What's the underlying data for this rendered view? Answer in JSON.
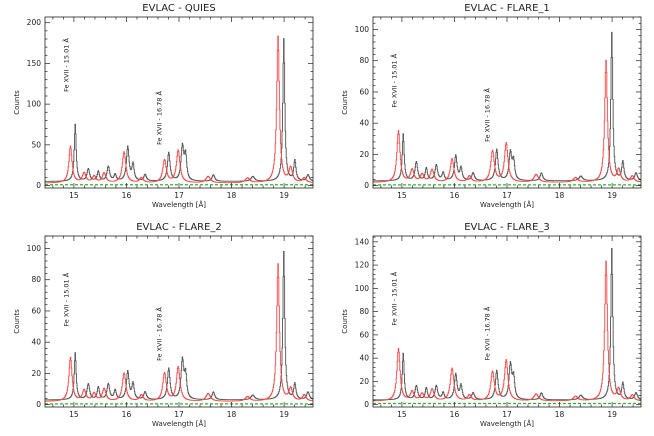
{
  "chart_data": [
    {
      "type": "line",
      "title": "EVLAC - QUIES",
      "xlabel": "Wavelength [Å]",
      "ylabel": "Counts",
      "xlim": [
        14.45,
        19.55
      ],
      "ylim": [
        -3,
        207
      ],
      "xticks": [
        15,
        16,
        17,
        18,
        19
      ],
      "yticks": [
        0,
        50,
        100,
        150,
        200
      ],
      "annotations": [
        {
          "text": "Fe XVII - 15.01 Å",
          "x": 14.9,
          "y": 115
        },
        {
          "text": "Fe XVII - 16.78 Å",
          "x": 16.67,
          "y": 50
        }
      ],
      "series": [
        {
          "color": "#555555",
          "background": 5,
          "lines": [
            [
              15.02,
              70,
              0.022
            ],
            [
              15.27,
              15,
              0.03
            ],
            [
              15.46,
              12,
              0.025
            ],
            [
              15.65,
              18,
              0.03
            ],
            [
              15.78,
              8,
              0.025
            ],
            [
              16.02,
              42,
              0.03
            ],
            [
              16.12,
              20,
              0.025
            ],
            [
              16.35,
              8,
              0.03
            ],
            [
              16.8,
              35,
              0.03
            ],
            [
              17.06,
              42,
              0.03
            ],
            [
              17.12,
              30,
              0.025
            ],
            [
              17.65,
              8,
              0.03
            ],
            [
              18.4,
              6,
              0.04
            ],
            [
              18.99,
              175,
              0.022
            ],
            [
              19.2,
              25,
              0.025
            ],
            [
              19.45,
              8,
              0.03
            ]
          ]
        },
        {
          "color": "#ff4444",
          "background": 3,
          "lines": [
            [
              14.93,
              45,
              0.035
            ],
            [
              15.19,
              12,
              0.04
            ],
            [
              15.38,
              8,
              0.04
            ],
            [
              15.57,
              12,
              0.04
            ],
            [
              15.95,
              38,
              0.04
            ],
            [
              16.28,
              6,
              0.04
            ],
            [
              16.72,
              28,
              0.04
            ],
            [
              16.98,
              40,
              0.04
            ],
            [
              17.55,
              8,
              0.05
            ],
            [
              18.3,
              6,
              0.05
            ],
            [
              18.88,
              180,
              0.03
            ],
            [
              19.12,
              18,
              0.04
            ],
            [
              19.38,
              6,
              0.04
            ]
          ]
        },
        {
          "color": "#22bb22",
          "background": 1,
          "lines": []
        }
      ]
    },
    {
      "type": "line",
      "title": "EVLAC - FLARE_1",
      "xlabel": "Wavelength [Å]",
      "ylabel": "Counts",
      "xlim": [
        14.45,
        19.55
      ],
      "ylim": [
        -1.5,
        108
      ],
      "xticks": [
        15,
        16,
        17,
        18,
        19
      ],
      "yticks": [
        0,
        20,
        40,
        60,
        80,
        100
      ],
      "annotations": [
        {
          "text": "Fe XVII - 15.01 Å",
          "x": 14.9,
          "y": 50
        },
        {
          "text": "Fe XVII - 16.78 Å",
          "x": 16.67,
          "y": 28
        }
      ],
      "series": [
        {
          "color": "#555555",
          "background": 3,
          "lines": [
            [
              15.02,
              30,
              0.022
            ],
            [
              15.27,
              12,
              0.03
            ],
            [
              15.46,
              8,
              0.025
            ],
            [
              15.65,
              10,
              0.03
            ],
            [
              15.78,
              5,
              0.025
            ],
            [
              16.02,
              16,
              0.03
            ],
            [
              16.12,
              8,
              0.025
            ],
            [
              16.35,
              5,
              0.03
            ],
            [
              16.8,
              20,
              0.03
            ],
            [
              17.06,
              18,
              0.03
            ],
            [
              17.12,
              12,
              0.025
            ],
            [
              17.65,
              5,
              0.03
            ],
            [
              18.4,
              3,
              0.04
            ],
            [
              18.99,
              95,
              0.022
            ],
            [
              19.2,
              12,
              0.025
            ],
            [
              19.45,
              5,
              0.03
            ]
          ]
        },
        {
          "color": "#ff4444",
          "background": 2,
          "lines": [
            [
              14.93,
              33,
              0.035
            ],
            [
              15.19,
              8,
              0.04
            ],
            [
              15.38,
              5,
              0.04
            ],
            [
              15.57,
              8,
              0.04
            ],
            [
              15.95,
              15,
              0.04
            ],
            [
              16.28,
              4,
              0.04
            ],
            [
              16.72,
              20,
              0.04
            ],
            [
              16.98,
              25,
              0.04
            ],
            [
              17.55,
              5,
              0.05
            ],
            [
              18.3,
              3,
              0.05
            ],
            [
              18.88,
              78,
              0.03
            ],
            [
              19.12,
              8,
              0.04
            ],
            [
              19.38,
              4,
              0.04
            ]
          ]
        },
        {
          "color": "#22bb22",
          "background": 0.5,
          "lines": []
        }
      ]
    },
    {
      "type": "line",
      "title": "EVLAC - FLARE_2",
      "xlabel": "Wavelength [Å]",
      "ylabel": "Counts",
      "xlim": [
        14.45,
        19.55
      ],
      "ylim": [
        -1.5,
        108
      ],
      "xticks": [
        15,
        16,
        17,
        18,
        19
      ],
      "yticks": [
        0,
        20,
        40,
        60,
        80,
        100
      ],
      "annotations": [
        {
          "text": "Fe XVII - 15.01 Å",
          "x": 14.9,
          "y": 50
        },
        {
          "text": "Fe XVII - 16.78 Å",
          "x": 16.67,
          "y": 28
        }
      ],
      "series": [
        {
          "color": "#555555",
          "background": 3,
          "lines": [
            [
              15.02,
              30,
              0.022
            ],
            [
              15.27,
              10,
              0.03
            ],
            [
              15.46,
              8,
              0.025
            ],
            [
              15.65,
              10,
              0.03
            ],
            [
              15.78,
              6,
              0.025
            ],
            [
              16.02,
              18,
              0.03
            ],
            [
              16.12,
              10,
              0.025
            ],
            [
              16.35,
              5,
              0.03
            ],
            [
              16.8,
              20,
              0.03
            ],
            [
              17.06,
              25,
              0.03
            ],
            [
              17.12,
              15,
              0.025
            ],
            [
              17.65,
              5,
              0.03
            ],
            [
              18.4,
              3,
              0.04
            ],
            [
              18.99,
              95,
              0.022
            ],
            [
              19.2,
              10,
              0.025
            ],
            [
              19.45,
              5,
              0.03
            ]
          ]
        },
        {
          "color": "#ff4444",
          "background": 2,
          "lines": [
            [
              14.93,
              28,
              0.035
            ],
            [
              15.19,
              7,
              0.04
            ],
            [
              15.38,
              5,
              0.04
            ],
            [
              15.57,
              8,
              0.04
            ],
            [
              15.95,
              18,
              0.04
            ],
            [
              16.28,
              4,
              0.04
            ],
            [
              16.72,
              18,
              0.04
            ],
            [
              16.98,
              22,
              0.04
            ],
            [
              17.55,
              5,
              0.05
            ],
            [
              18.3,
              3,
              0.05
            ],
            [
              18.88,
              88,
              0.03
            ],
            [
              19.12,
              8,
              0.04
            ],
            [
              19.38,
              4,
              0.04
            ]
          ]
        },
        {
          "color": "#22bb22",
          "background": 0.5,
          "lines": []
        }
      ]
    },
    {
      "type": "line",
      "title": "EVLAC - FLARE_3",
      "xlabel": "Wavelength [Å]",
      "ylabel": "Counts",
      "xlim": [
        14.45,
        19.55
      ],
      "ylim": [
        -2,
        145
      ],
      "xticks": [
        15,
        16,
        17,
        18,
        19
      ],
      "yticks": [
        0,
        20,
        40,
        60,
        80,
        100,
        120,
        140
      ],
      "annotations": [
        {
          "text": "Fe XVII - 15.01 Å",
          "x": 14.9,
          "y": 68
        },
        {
          "text": "Fe XVII - 16.78 Å",
          "x": 16.67,
          "y": 38
        }
      ],
      "series": [
        {
          "color": "#555555",
          "background": 4,
          "lines": [
            [
              15.02,
              40,
              0.022
            ],
            [
              15.27,
              12,
              0.03
            ],
            [
              15.46,
              10,
              0.025
            ],
            [
              15.65,
              12,
              0.03
            ],
            [
              15.78,
              6,
              0.025
            ],
            [
              16.02,
              22,
              0.03
            ],
            [
              16.12,
              12,
              0.025
            ],
            [
              16.35,
              6,
              0.03
            ],
            [
              16.8,
              25,
              0.03
            ],
            [
              17.06,
              30,
              0.03
            ],
            [
              17.12,
              18,
              0.025
            ],
            [
              17.65,
              6,
              0.03
            ],
            [
              18.4,
              4,
              0.04
            ],
            [
              18.99,
              130,
              0.022
            ],
            [
              19.2,
              14,
              0.025
            ],
            [
              19.45,
              6,
              0.03
            ]
          ]
        },
        {
          "color": "#ff4444",
          "background": 3,
          "lines": [
            [
              14.93,
              45,
              0.035
            ],
            [
              15.19,
              8,
              0.04
            ],
            [
              15.38,
              6,
              0.04
            ],
            [
              15.57,
              10,
              0.04
            ],
            [
              15.95,
              28,
              0.04
            ],
            [
              16.28,
              5,
              0.04
            ],
            [
              16.72,
              25,
              0.04
            ],
            [
              16.98,
              35,
              0.04
            ],
            [
              17.55,
              6,
              0.05
            ],
            [
              18.3,
              4,
              0.05
            ],
            [
              18.88,
              120,
              0.03
            ],
            [
              19.12,
              10,
              0.04
            ],
            [
              19.38,
              5,
              0.04
            ]
          ]
        },
        {
          "color": "#22bb22",
          "background": 1,
          "lines": []
        }
      ]
    }
  ]
}
